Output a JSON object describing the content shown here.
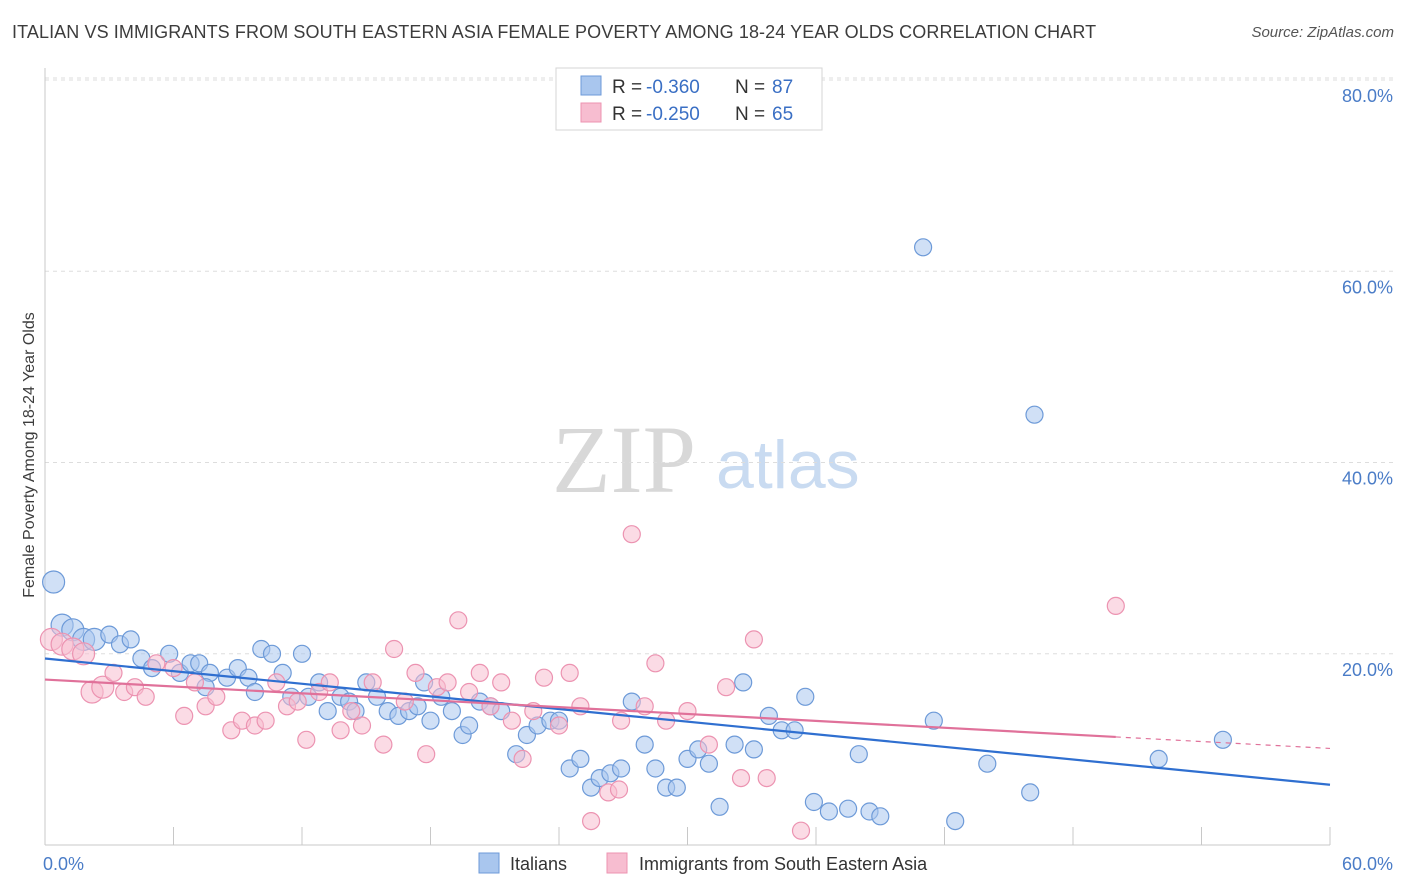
{
  "header": {
    "title": "ITALIAN VS IMMIGRANTS FROM SOUTH EASTERN ASIA FEMALE POVERTY AMONG 18-24 YEAR OLDS CORRELATION CHART",
    "source": "Source: ZipAtlas.com"
  },
  "watermark": {
    "zip": "ZIP",
    "atlas": "atlas"
  },
  "legend": {
    "r_label": "R =",
    "n_label": "N =",
    "rows": [
      {
        "r": "-0.360",
        "n": "87"
      },
      {
        "r": "-0.250",
        "n": "65"
      }
    ]
  },
  "bottom_legend": {
    "italians": "Italians",
    "sea": "Immigrants from South Eastern Asia"
  },
  "colors": {
    "blue_fill": "#a9c6ee",
    "blue_stroke": "#6d9ad8",
    "blue_line": "#2f6fd0",
    "pink_fill": "#f7bdd0",
    "pink_stroke": "#ec93b1",
    "pink_line": "#e0719a",
    "grid": "#dddddd",
    "tick_text": "#4a7cc7"
  },
  "chart_data": {
    "type": "scatter",
    "title": "ITALIAN VS IMMIGRANTS FROM SOUTH EASTERN ASIA FEMALE POVERTY AMONG 18-24 YEAR OLDS CORRELATION CHART",
    "xlabel": "",
    "ylabel": "Female Poverty Among 18-24 Year Olds",
    "xlim": [
      0,
      60
    ],
    "ylim": [
      0,
      80
    ],
    "x_tick_labels": [
      "0.0%",
      "60.0%"
    ],
    "y_tick_labels": [
      "20.0%",
      "40.0%",
      "60.0%",
      "80.0%"
    ],
    "y_ticks": [
      20,
      40,
      60,
      80
    ],
    "grid": true,
    "legend_position": "top-center",
    "series": [
      {
        "name": "Italians",
        "color": "#a9c6ee",
        "r": -0.36,
        "n": 87,
        "trend": [
          [
            0,
            19.5
          ],
          [
            60,
            6.3
          ]
        ],
        "points": [
          [
            0.4,
            27.5
          ],
          [
            0.8,
            23.0
          ],
          [
            1.3,
            22.5
          ],
          [
            1.8,
            21.5
          ],
          [
            2.3,
            21.5
          ],
          [
            3.0,
            22.0
          ],
          [
            3.5,
            21.0
          ],
          [
            4.0,
            21.5
          ],
          [
            4.5,
            19.5
          ],
          [
            5.8,
            20.0
          ],
          [
            6.3,
            18.0
          ],
          [
            6.8,
            19.0
          ],
          [
            7.2,
            19.0
          ],
          [
            7.7,
            18.0
          ],
          [
            8.5,
            17.5
          ],
          [
            9.0,
            18.5
          ],
          [
            9.5,
            17.5
          ],
          [
            10.1,
            20.5
          ],
          [
            10.6,
            20.0
          ],
          [
            11.1,
            18.0
          ],
          [
            11.5,
            15.5
          ],
          [
            12.0,
            20.0
          ],
          [
            12.3,
            15.5
          ],
          [
            12.8,
            17.0
          ],
          [
            13.2,
            14.0
          ],
          [
            13.8,
            15.5
          ],
          [
            14.2,
            15.0
          ],
          [
            14.5,
            14.0
          ],
          [
            15.0,
            17.0
          ],
          [
            15.5,
            15.5
          ],
          [
            16.0,
            14.0
          ],
          [
            16.5,
            13.5
          ],
          [
            17.0,
            14.0
          ],
          [
            17.4,
            14.5
          ],
          [
            17.7,
            17.0
          ],
          [
            18.0,
            13.0
          ],
          [
            18.5,
            15.5
          ],
          [
            19.0,
            14.0
          ],
          [
            19.5,
            11.5
          ],
          [
            19.8,
            12.5
          ],
          [
            20.3,
            15.0
          ],
          [
            20.8,
            14.5
          ],
          [
            21.3,
            14.0
          ],
          [
            22.0,
            9.5
          ],
          [
            22.5,
            11.5
          ],
          [
            23.0,
            12.5
          ],
          [
            23.6,
            13.0
          ],
          [
            24.0,
            13.0
          ],
          [
            24.5,
            8.0
          ],
          [
            25.0,
            9.0
          ],
          [
            25.5,
            6.0
          ],
          [
            25.9,
            7.0
          ],
          [
            26.4,
            7.5
          ],
          [
            26.9,
            8.0
          ],
          [
            27.4,
            15.0
          ],
          [
            28.0,
            10.5
          ],
          [
            28.5,
            8.0
          ],
          [
            29.0,
            6.0
          ],
          [
            29.5,
            6.0
          ],
          [
            30.0,
            9.0
          ],
          [
            30.5,
            10.0
          ],
          [
            31.0,
            8.5
          ],
          [
            31.5,
            4.0
          ],
          [
            32.2,
            10.5
          ],
          [
            32.6,
            17.0
          ],
          [
            33.1,
            10.0
          ],
          [
            33.8,
            13.5
          ],
          [
            34.4,
            12.0
          ],
          [
            35.0,
            12.0
          ],
          [
            35.5,
            15.5
          ],
          [
            35.9,
            4.5
          ],
          [
            36.6,
            3.5
          ],
          [
            37.5,
            3.8
          ],
          [
            38.0,
            9.5
          ],
          [
            38.5,
            3.5
          ],
          [
            39.0,
            3.0
          ],
          [
            41.0,
            62.5
          ],
          [
            41.5,
            13.0
          ],
          [
            42.5,
            2.5
          ],
          [
            44.0,
            8.5
          ],
          [
            46.2,
            45.0
          ],
          [
            46.0,
            5.5
          ],
          [
            52.0,
            9.0
          ],
          [
            55.0,
            11.0
          ],
          [
            5.0,
            18.5
          ],
          [
            7.5,
            16.5
          ],
          [
            9.8,
            16.0
          ]
        ]
      },
      {
        "name": "Immigrants from South Eastern Asia",
        "color": "#f7bdd0",
        "r": -0.25,
        "n": 65,
        "trend": [
          [
            0,
            17.3
          ],
          [
            50,
            11.3
          ]
        ],
        "trend_dashed": [
          [
            50,
            11.3
          ],
          [
            60,
            10.1
          ]
        ],
        "points": [
          [
            0.3,
            21.5
          ],
          [
            0.8,
            21.0
          ],
          [
            1.3,
            20.5
          ],
          [
            1.8,
            20.0
          ],
          [
            2.2,
            16.0
          ],
          [
            2.7,
            16.5
          ],
          [
            3.2,
            18.0
          ],
          [
            3.7,
            16.0
          ],
          [
            4.2,
            16.5
          ],
          [
            4.7,
            15.5
          ],
          [
            5.2,
            19.0
          ],
          [
            6.0,
            18.5
          ],
          [
            6.5,
            13.5
          ],
          [
            7.0,
            17.0
          ],
          [
            7.5,
            14.5
          ],
          [
            8.0,
            15.5
          ],
          [
            8.7,
            12.0
          ],
          [
            9.2,
            13.0
          ],
          [
            9.8,
            12.5
          ],
          [
            10.3,
            13.0
          ],
          [
            10.8,
            17.0
          ],
          [
            11.3,
            14.5
          ],
          [
            11.8,
            15.0
          ],
          [
            12.2,
            11.0
          ],
          [
            12.8,
            16.0
          ],
          [
            13.3,
            17.0
          ],
          [
            13.8,
            12.0
          ],
          [
            14.3,
            14.0
          ],
          [
            14.8,
            12.5
          ],
          [
            15.3,
            17.0
          ],
          [
            15.8,
            10.5
          ],
          [
            16.3,
            20.5
          ],
          [
            16.8,
            15.0
          ],
          [
            17.3,
            18.0
          ],
          [
            17.8,
            9.5
          ],
          [
            18.3,
            16.5
          ],
          [
            18.8,
            17.0
          ],
          [
            19.3,
            23.5
          ],
          [
            19.8,
            16.0
          ],
          [
            20.3,
            18.0
          ],
          [
            20.8,
            14.5
          ],
          [
            21.3,
            17.0
          ],
          [
            21.8,
            13.0
          ],
          [
            22.3,
            9.0
          ],
          [
            22.8,
            14.0
          ],
          [
            23.3,
            17.5
          ],
          [
            24.0,
            12.5
          ],
          [
            24.5,
            18.0
          ],
          [
            25.0,
            14.5
          ],
          [
            25.5,
            2.5
          ],
          [
            26.3,
            5.5
          ],
          [
            26.9,
            13.0
          ],
          [
            27.4,
            32.5
          ],
          [
            28.0,
            14.5
          ],
          [
            28.5,
            19.0
          ],
          [
            29.0,
            13.0
          ],
          [
            30.0,
            14.0
          ],
          [
            31.0,
            10.5
          ],
          [
            31.8,
            16.5
          ],
          [
            32.5,
            7.0
          ],
          [
            33.1,
            21.5
          ],
          [
            33.7,
            7.0
          ],
          [
            35.3,
            1.5
          ],
          [
            50.0,
            25.0
          ],
          [
            26.8,
            5.8
          ]
        ]
      }
    ]
  }
}
